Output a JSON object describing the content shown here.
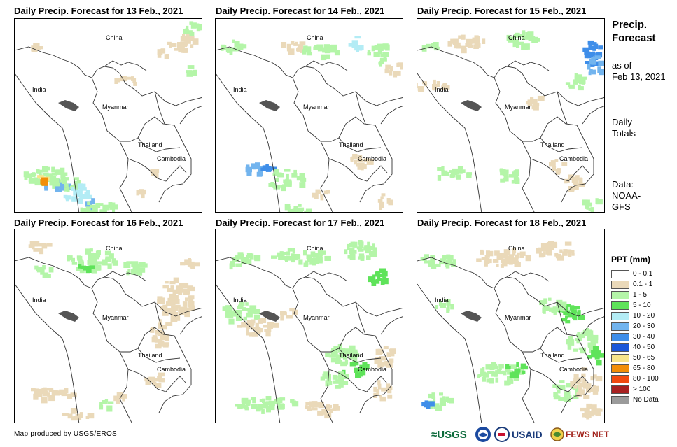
{
  "panels": [
    {
      "title": "Daily Precip. Forecast for 13 Feb., 2021"
    },
    {
      "title": "Daily Precip. Forecast for 14 Feb., 2021"
    },
    {
      "title": "Daily Precip. Forecast for 15 Feb., 2021"
    },
    {
      "title": "Daily Precip. Forecast for 16 Feb., 2021"
    },
    {
      "title": "Daily Precip. Forecast for 17 Feb., 2021"
    },
    {
      "title": "Daily Precip. Forecast for 18 Feb., 2021"
    }
  ],
  "map_labels": {
    "china": "China",
    "india": "India",
    "myanmar": "Myanmar",
    "thailand": "Thailand",
    "cambodia": "Cambodia"
  },
  "side": {
    "title_line1": "Precip.",
    "title_line2": "Forecast",
    "asof_line1": "as of",
    "asof_line2": "Feb 13, 2021",
    "daily_line1": "Daily",
    "daily_line2": "Totals",
    "data_line1": "Data:",
    "data_line2": "NOAA-",
    "data_line3": "GFS"
  },
  "legend": {
    "title": "PPT (mm)",
    "items": [
      {
        "label": "0 - 0.1",
        "color": "#ffffff"
      },
      {
        "label": "0.1 - 1",
        "color": "#ead9b9"
      },
      {
        "label": "1 - 5",
        "color": "#b4f5a8"
      },
      {
        "label": "5 - 10",
        "color": "#5fe35a"
      },
      {
        "label": "10 - 20",
        "color": "#b3ecf5"
      },
      {
        "label": "20 - 30",
        "color": "#72b4ee"
      },
      {
        "label": "30 - 40",
        "color": "#3f8ee9"
      },
      {
        "label": "40 - 50",
        "color": "#1a57d9"
      },
      {
        "label": "50 - 65",
        "color": "#f8e58a"
      },
      {
        "label": "65 - 80",
        "color": "#f28e08"
      },
      {
        "label": "80 - 100",
        "color": "#f04a10"
      },
      {
        "label": "> 100",
        "color": "#a82121"
      },
      {
        "label": "No Data",
        "color": "#9b9b9b"
      }
    ]
  },
  "credit": "Map produced by USGS/EROS",
  "logos": {
    "usgs": "≈USGS",
    "usaid": "USAID",
    "fewsnet": "FEWS NET"
  }
}
